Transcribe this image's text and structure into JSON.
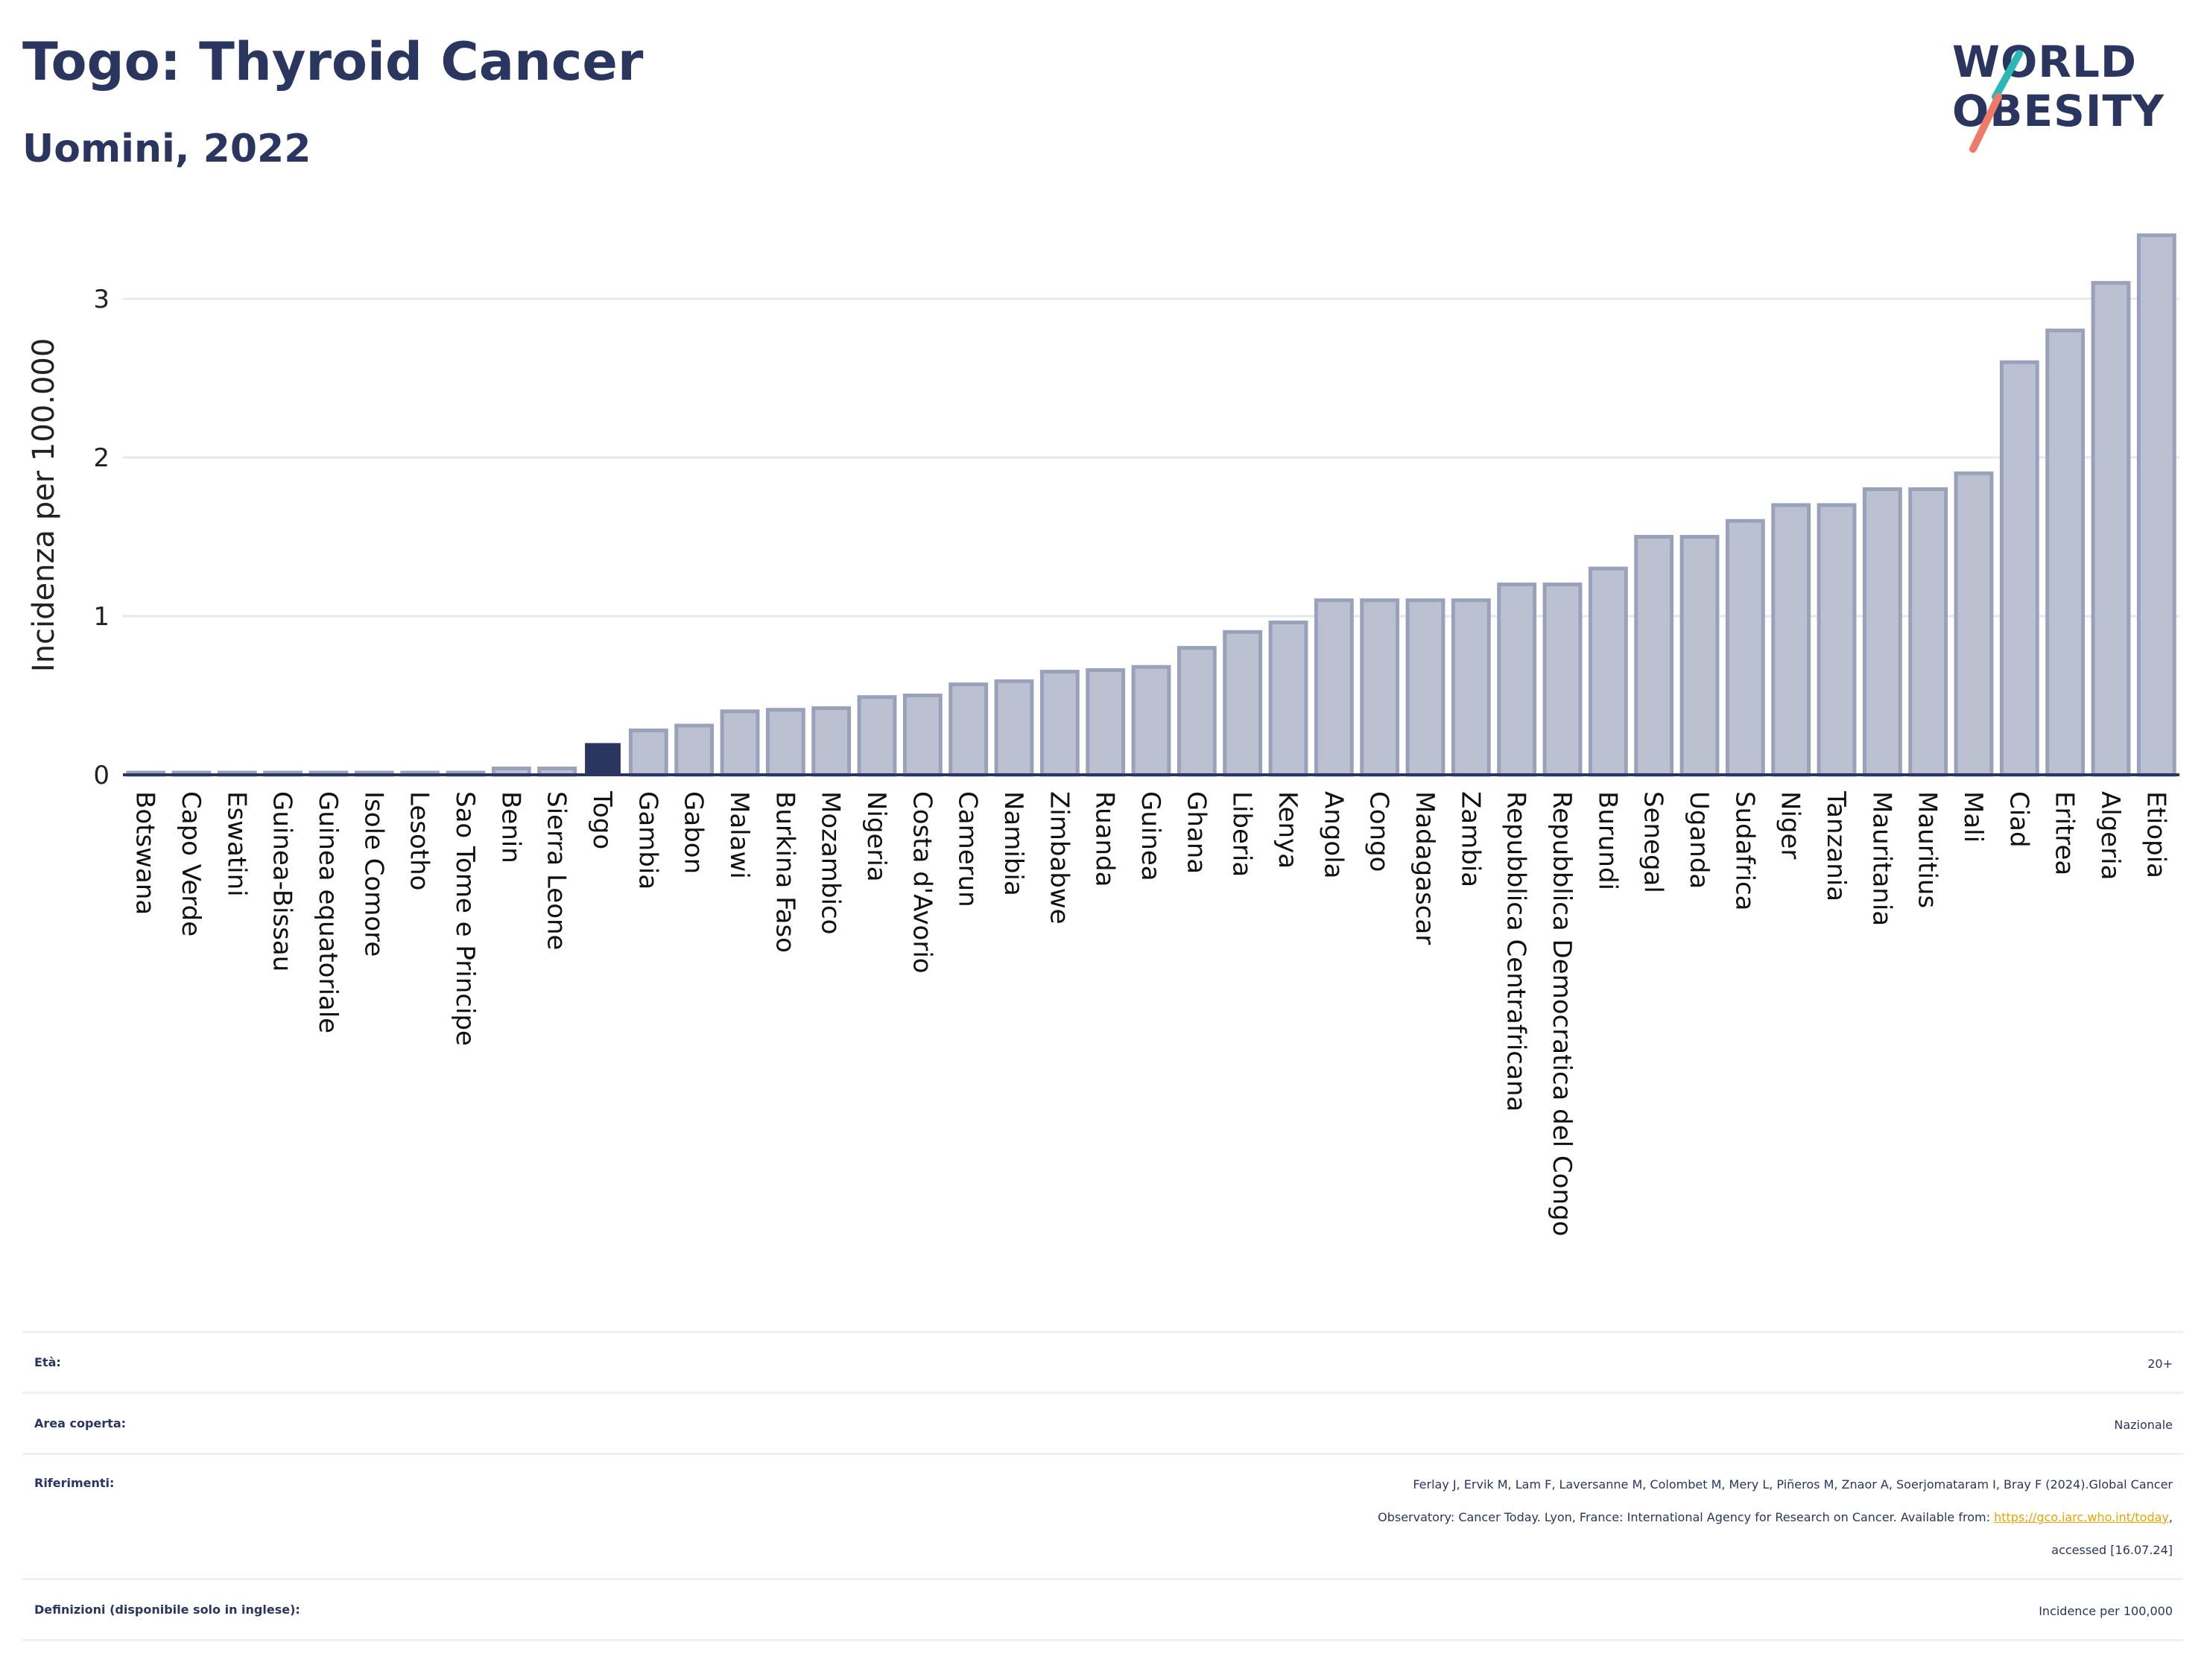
{
  "header": {
    "title": "Togo: Thyroid Cancer",
    "subtitle": "Uomini, 2022"
  },
  "logo": {
    "line1": "WORLD",
    "line2": "OBESITY",
    "colors": {
      "text": "#2a3560",
      "slash_top": "#2bb7b3",
      "slash_bottom": "#f07a6a"
    }
  },
  "colors": {
    "highlight": "#2a3560",
    "bar_fill": "#bcc1d1",
    "bar_stroke": "#9aa1bb",
    "grid": "#e6e8ef",
    "axis": "#2a3560",
    "link": "#e6a600"
  },
  "chart_data": {
    "type": "bar",
    "ylabel": "Incidenza per 100.000",
    "xlabel": "",
    "ylim": [
      0,
      3.45
    ],
    "yticks": [
      0,
      1,
      2,
      3
    ],
    "grid": true,
    "highlight": "Togo",
    "categories": [
      "Botswana",
      "Capo Verde",
      "Eswatini",
      "Guinea-Bissau",
      "Guinea equatoriale",
      "Isole Comore",
      "Lesotho",
      "Sao Tome e Principe",
      "Benin",
      "Sierra Leone",
      "Togo",
      "Gambia",
      "Gabon",
      "Malawi",
      "Burkina Faso",
      "Mozambico",
      "Nigeria",
      "Costa d'Avorio",
      "Camerun",
      "Namibia",
      "Zimbabwe",
      "Ruanda",
      "Guinea",
      "Ghana",
      "Liberia",
      "Kenya",
      "Angola",
      "Congo",
      "Madagascar",
      "Zambia",
      "Repubblica Centrafricana",
      "Repubblica Democratica del Congo",
      "Burundi",
      "Senegal",
      "Uganda",
      "Sudafrica",
      "Niger",
      "Tanzania",
      "Mauritania",
      "Mauritius",
      "Mali",
      "Ciad",
      "Eritrea",
      "Algeria",
      "Etiopia"
    ],
    "values": [
      0.01,
      0.01,
      0.01,
      0.01,
      0.01,
      0.01,
      0.01,
      0.01,
      0.04,
      0.04,
      0.2,
      0.28,
      0.31,
      0.4,
      0.41,
      0.42,
      0.49,
      0.5,
      0.57,
      0.59,
      0.65,
      0.66,
      0.68,
      0.8,
      0.9,
      0.96,
      1.1,
      1.1,
      1.1,
      1.1,
      1.2,
      1.2,
      1.3,
      1.5,
      1.5,
      1.6,
      1.7,
      1.7,
      1.8,
      1.8,
      1.9,
      2.6,
      2.8,
      3.1,
      3.4
    ]
  },
  "meta": {
    "age_label": "Età:",
    "age_value": "20+",
    "area_label": "Area coperta:",
    "area_value": "Nazionale",
    "refs_label": "Riferimenti:",
    "refs_line1": "Ferlay J, Ervik M, Lam F, Laversanne M, Colombet M, Mery L, Piñeros M, Znaor A, Soerjomataram I, Bray F (2024).Global Cancer",
    "refs_line2": "Observatory: Cancer Today. Lyon, France: International Agency for Research on Cancer. Available from: ",
    "refs_link": "https://gco.iarc.who.int/today",
    "refs_line2_end": ",",
    "refs_line3": "accessed [16.07.24]",
    "defs_label": "Definizioni (disponibile solo in inglese):",
    "defs_value": "Incidence per 100,000"
  }
}
